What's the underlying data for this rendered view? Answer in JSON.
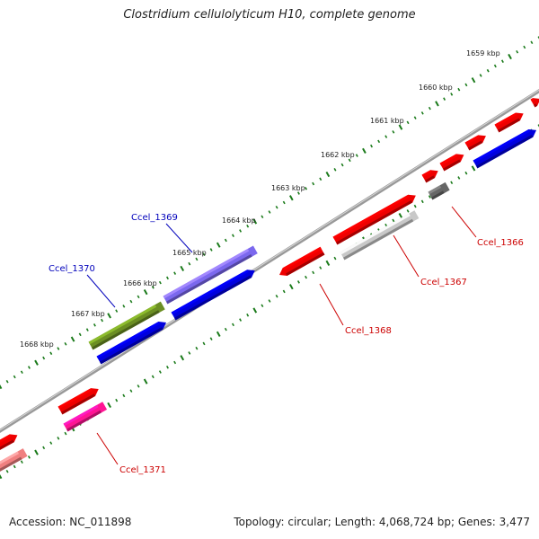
{
  "title": "Clostridium cellulolyticum H10, complete genome",
  "accession_label": "Accession: NC_011898",
  "summary_label": "Topology: circular; Length: 4,068,724 bp; Genes: 3,477",
  "colors": {
    "red": "#ee0000",
    "blue": "#0000dd",
    "olive": "#6b8e23",
    "slate": "#7b68ee",
    "grey": "#c8c8c8",
    "dark_grey": "#666666",
    "pink": "#ff1493",
    "light_red": "#f08080",
    "tick": "#1a7a1a",
    "backbone": "#888888",
    "label_blue": "#0000bb",
    "label_red": "#cc0000"
  },
  "kbp_ticks": [
    {
      "label": "1659 kbp",
      "position_kbp": 1659
    },
    {
      "label": "1660 kbp",
      "position_kbp": 1660
    },
    {
      "label": "1661 kbp",
      "position_kbp": 1661
    },
    {
      "label": "1662 kbp",
      "position_kbp": 1662
    },
    {
      "label": "1663 kbp",
      "position_kbp": 1663
    },
    {
      "label": "1664 kbp",
      "position_kbp": 1664
    },
    {
      "label": "1665 kbp",
      "position_kbp": 1665
    },
    {
      "label": "1666 kbp",
      "position_kbp": 1666
    },
    {
      "label": "1667 kbp",
      "position_kbp": 1667
    },
    {
      "label": "1668 kbp",
      "position_kbp": 1668
    }
  ],
  "gene_labels": [
    {
      "name": "Ccel_1366",
      "color": "label_red"
    },
    {
      "name": "Ccel_1367",
      "color": "label_red"
    },
    {
      "name": "Ccel_1368",
      "color": "label_red"
    },
    {
      "name": "Ccel_1369",
      "color": "label_blue"
    },
    {
      "name": "Ccel_1370",
      "color": "label_blue"
    },
    {
      "name": "Ccel_1371",
      "color": "label_red"
    }
  ]
}
